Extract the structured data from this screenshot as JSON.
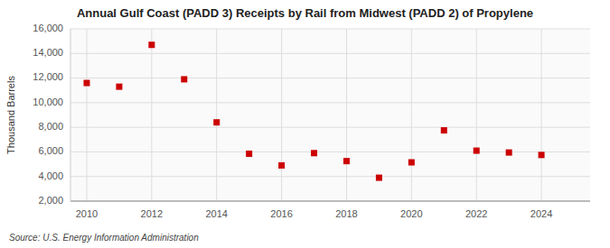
{
  "chart_data": {
    "type": "scatter",
    "title": "Annual Gulf Coast (PADD 3) Receipts by Rail from Midwest (PADD 2) of Propylene",
    "y_label": "Thousand Barrels",
    "source": "Source: U.S. Energy Information Administration",
    "x": [
      2010,
      2011,
      2012,
      2013,
      2014,
      2015,
      2016,
      2017,
      2018,
      2019,
      2020,
      2021,
      2022,
      2023,
      2024
    ],
    "values": [
      11600,
      11300,
      14700,
      11900,
      8400,
      5850,
      4900,
      5900,
      5250,
      3900,
      5150,
      7750,
      6100,
      5950,
      5750
    ],
    "color": "#cc0000",
    "marker": "square",
    "grid": true,
    "xlim": [
      2009.5,
      2025.5
    ],
    "xticks": [
      2010,
      2012,
      2014,
      2016,
      2018,
      2020,
      2022,
      2024
    ],
    "ylim": [
      2000,
      16000
    ],
    "yticks": [
      {
        "value": 2000,
        "label": "2,000"
      },
      {
        "value": 4000,
        "label": "4,000"
      },
      {
        "value": 6000,
        "label": "6,000"
      },
      {
        "value": 8000,
        "label": "8,000"
      },
      {
        "value": 10000,
        "label": "10,000"
      },
      {
        "value": 12000,
        "label": "12,000"
      },
      {
        "value": 14000,
        "label": "14,000"
      },
      {
        "value": 16000,
        "label": "16,000"
      }
    ]
  }
}
